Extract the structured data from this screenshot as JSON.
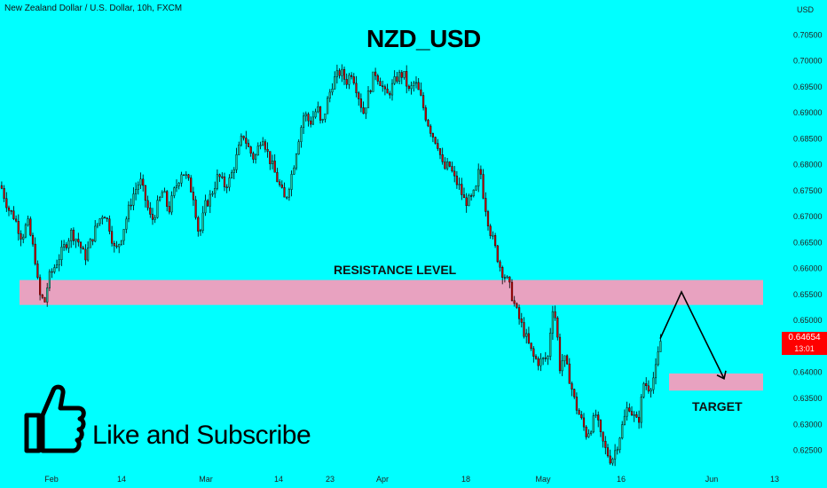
{
  "header": {
    "symbol_desc": "New Zealand Dollar / U.S. Dollar, 10h, FXCM",
    "currency": "USD"
  },
  "chart_data": {
    "type": "candlestick",
    "title": "NZD_USD",
    "y_ticks": [
      "0.70500",
      "0.70000",
      "0.69500",
      "0.69000",
      "0.68500",
      "0.68000",
      "0.67500",
      "0.67000",
      "0.66500",
      "0.66000",
      "0.65500",
      "0.65000",
      "0.64500",
      "0.64000",
      "0.63500",
      "0.63000",
      "0.62500"
    ],
    "ylim": [
      0.6215,
      0.709
    ],
    "x_ticks": [
      "Feb",
      "14",
      "Mar",
      "14",
      "23",
      "Apr",
      "18",
      "May",
      "16",
      "Jun",
      "13"
    ],
    "last_price": "0.64654",
    "countdown": "13:01",
    "resistance_level": {
      "label": "RESISTANCE LEVEL",
      "from": 0.653,
      "to": 0.6578
    },
    "target": {
      "label": "TARGET",
      "from": 0.6365,
      "to": 0.6398
    },
    "projection": [
      0.6465,
      0.6555,
      0.6388
    ],
    "path": [
      [
        0.676,
        0
      ],
      [
        0.6715,
        4
      ],
      [
        0.67,
        7
      ],
      [
        0.666,
        11
      ],
      [
        0.669,
        14
      ],
      [
        0.662,
        18
      ],
      [
        0.655,
        20
      ],
      [
        0.6535,
        23
      ],
      [
        0.658,
        25
      ],
      [
        0.661,
        29
      ],
      [
        0.664,
        33
      ],
      [
        0.667,
        37
      ],
      [
        0.665,
        41
      ],
      [
        0.662,
        44
      ],
      [
        0.665,
        47
      ],
      [
        0.669,
        51
      ],
      [
        0.671,
        54
      ],
      [
        0.668,
        57
      ],
      [
        0.663,
        60
      ],
      [
        0.666,
        63
      ],
      [
        0.67,
        66
      ],
      [
        0.674,
        69
      ],
      [
        0.677,
        73
      ],
      [
        0.673,
        76
      ],
      [
        0.669,
        79
      ],
      [
        0.672,
        82
      ],
      [
        0.675,
        85
      ],
      [
        0.671,
        88
      ],
      [
        0.675,
        91
      ],
      [
        0.679,
        95
      ],
      [
        0.677,
        98
      ],
      [
        0.674,
        101
      ],
      [
        0.666,
        104
      ],
      [
        0.672,
        107
      ],
      [
        0.674,
        110
      ],
      [
        0.678,
        114
      ],
      [
        0.676,
        117
      ],
      [
        0.677,
        120
      ],
      [
        0.682,
        124
      ],
      [
        0.686,
        127
      ],
      [
        0.683,
        130
      ],
      [
        0.681,
        133
      ],
      [
        0.686,
        137
      ],
      [
        0.682,
        140
      ],
      [
        0.679,
        143
      ],
      [
        0.676,
        146
      ],
      [
        0.673,
        149
      ],
      [
        0.679,
        153
      ],
      [
        0.685,
        156
      ],
      [
        0.69,
        159
      ],
      [
        0.688,
        162
      ],
      [
        0.691,
        166
      ],
      [
        0.687,
        168
      ],
      [
        0.692,
        171
      ],
      [
        0.696,
        174
      ],
      [
        0.698,
        178
      ],
      [
        0.696,
        181
      ],
      [
        0.698,
        184
      ],
      [
        0.694,
        187
      ],
      [
        0.69,
        190
      ],
      [
        0.694,
        193
      ],
      [
        0.698,
        196
      ],
      [
        0.696,
        199
      ],
      [
        0.693,
        202
      ],
      [
        0.695,
        205
      ],
      [
        0.697,
        208
      ],
      [
        0.6975,
        211
      ],
      [
        0.694,
        214
      ],
      [
        0.696,
        217
      ],
      [
        0.693,
        220
      ],
      [
        0.689,
        223
      ],
      [
        0.686,
        226
      ],
      [
        0.684,
        229
      ],
      [
        0.679,
        232
      ],
      [
        0.68,
        235
      ],
      [
        0.677,
        238
      ],
      [
        0.676,
        240
      ],
      [
        0.673,
        243
      ],
      [
        0.673,
        246
      ],
      [
        0.675,
        249
      ],
      [
        0.68,
        251
      ],
      [
        0.674,
        253
      ],
      [
        0.668,
        256
      ],
      [
        0.664,
        259
      ],
      [
        0.66,
        262
      ],
      [
        0.658,
        265
      ],
      [
        0.656,
        267
      ],
      [
        0.652,
        270
      ],
      [
        0.649,
        273
      ],
      [
        0.646,
        276
      ],
      [
        0.643,
        279
      ],
      [
        0.642,
        282
      ],
      [
        0.6425,
        285
      ],
      [
        0.643,
        287
      ],
      [
        0.653,
        289
      ],
      [
        0.65,
        291
      ],
      [
        0.641,
        293
      ],
      [
        0.643,
        295
      ],
      [
        0.639,
        298
      ],
      [
        0.634,
        301
      ],
      [
        0.631,
        304
      ],
      [
        0.628,
        307
      ],
      [
        0.63,
        310
      ],
      [
        0.632,
        312
      ],
      [
        0.628,
        314
      ],
      [
        0.625,
        317
      ],
      [
        0.623,
        320
      ],
      [
        0.626,
        323
      ],
      [
        0.63,
        326
      ],
      [
        0.634,
        329
      ],
      [
        0.632,
        331
      ],
      [
        0.63,
        334
      ],
      [
        0.638,
        337
      ],
      [
        0.637,
        340
      ],
      [
        0.64,
        343
      ],
      [
        0.6465,
        346
      ]
    ]
  },
  "promo": {
    "text": "Like and Subscribe"
  },
  "colors": {
    "background": "#00ffff",
    "candle_up": "#22bb99",
    "candle_down": "#cc0000",
    "zone_fill": "#e8a2c0",
    "badge": "#ff0000"
  },
  "icons": {
    "thumbs_up": "thumbs-up-icon"
  }
}
